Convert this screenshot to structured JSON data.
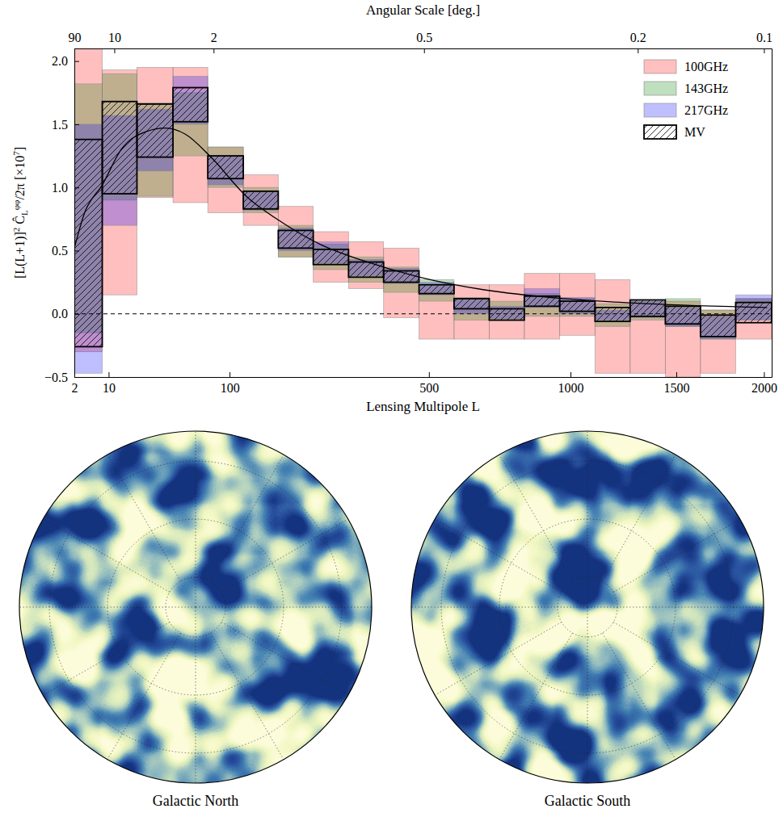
{
  "chart_data": {
    "type": "errorbox",
    "x2label": "Angular Scale [deg.]",
    "xlabel": "Lensing Multipole L",
    "ylabel": [
      "[L(L+1)]",
      "2",
      " Ĉ",
      "L",
      "φφ",
      "/2π [×10",
      "7",
      "]"
    ],
    "xlim": [
      2,
      2048
    ],
    "ylim": [
      -0.5,
      2.1
    ],
    "xticks": [
      2,
      10,
      100,
      500,
      1000,
      1500,
      2000
    ],
    "x2ticks": [
      {
        "value": 2,
        "label": "90"
      },
      {
        "value": 12,
        "label": "10"
      },
      {
        "value": 82,
        "label": "2"
      },
      {
        "value": 486,
        "label": "0.5"
      },
      {
        "value": 1305,
        "label": "0.2"
      },
      {
        "value": 2000,
        "label": "0.1"
      }
    ],
    "yticks": [
      {
        "value": -0.5,
        "label": "−0.5"
      },
      {
        "value": 0,
        "label": "0.0"
      },
      0.5,
      {
        "value": 1,
        "label": "1.0"
      },
      1.5,
      {
        "value": 2,
        "label": "2.0"
      }
    ],
    "bins": [
      2,
      8,
      22,
      45,
      76,
      117,
      167,
      227,
      298,
      379,
      472,
      575,
      690,
      816,
      955,
      1106,
      1268,
      1443,
      1630,
      1830,
      2048
    ],
    "series": [
      {
        "name": "100GHz",
        "color": "#ff0000",
        "values": [
          1.0,
          1.04,
          1.435,
          1.415,
          1.06,
          0.9,
          0.65,
          0.45,
          0.385,
          0.245,
          0.015,
          0.015,
          0.015,
          0.06,
          0.075,
          -0.1,
          -0.185,
          -0.2,
          -0.22,
          -0.04
        ],
        "errors": [
          1.3,
          0.89,
          0.515,
          0.535,
          0.26,
          0.2,
          0.2,
          0.2,
          0.185,
          0.275,
          0.215,
          0.215,
          0.215,
          0.26,
          0.245,
          0.37,
          0.285,
          0.3,
          0.25,
          0.16
        ]
      },
      {
        "name": "143GHz",
        "color": "#008000",
        "values": [
          0.835,
          1.4,
          1.3,
          1.5,
          1.16,
          0.9,
          0.575,
          0.45,
          0.35,
          0.27,
          0.185,
          0.04,
          0.025,
          0.07,
          0.05,
          -0.01,
          0.025,
          0.01,
          -0.085,
          0.035
        ],
        "errors": [
          0.985,
          0.5,
          0.37,
          0.25,
          0.16,
          0.1,
          0.125,
          0.1,
          0.1,
          0.1,
          0.085,
          0.09,
          0.075,
          0.09,
          0.07,
          0.09,
          0.075,
          0.11,
          0.115,
          0.085
        ]
      },
      {
        "name": "217GHz",
        "color": "#0000ff",
        "values": [
          0.515,
          1.135,
          1.375,
          1.69,
          1.135,
          0.895,
          0.59,
          0.485,
          0.365,
          0.3,
          0.2,
          0.06,
          0.01,
          0.125,
          0.065,
          -0.01,
          0.035,
          -0.025,
          -0.11,
          0.05
        ],
        "errors": [
          0.985,
          0.435,
          0.245,
          0.19,
          0.115,
          0.075,
          0.09,
          0.085,
          0.065,
          0.06,
          0.05,
          0.06,
          0.05,
          0.075,
          0.065,
          0.04,
          0.065,
          0.075,
          0.09,
          0.1
        ]
      },
      {
        "name": "MV",
        "color": "#000000",
        "marker": "hatch",
        "values": [
          0.56,
          1.315,
          1.45,
          1.655,
          1.16,
          0.9,
          0.59,
          0.45,
          0.35,
          0.295,
          0.195,
          0.08,
          -0.005,
          0.1,
          0.06,
          -0.005,
          0.045,
          -0.01,
          -0.095,
          0.01
        ],
        "errors": [
          0.82,
          0.365,
          0.21,
          0.135,
          0.09,
          0.07,
          0.07,
          0.06,
          0.06,
          0.045,
          0.035,
          0.04,
          0.045,
          0.04,
          0.04,
          0.055,
          0.065,
          0.07,
          0.085,
          0.08
        ]
      },
      {
        "type": "line",
        "color": "#000000",
        "x": [
          2,
          3.7,
          8,
          14.7,
          26.6,
          39.5,
          55.3,
          78,
          121,
          174,
          245,
          331,
          474,
          673,
          977,
          1345,
          2019
        ],
        "values": [
          0.52,
          0.8,
          1.02,
          1.3,
          1.44,
          1.47,
          1.42,
          1.25,
          0.93,
          0.72,
          0.54,
          0.42,
          0.29,
          0.19,
          0.12,
          0.08,
          0.05
        ]
      }
    ],
    "hlines": [
      0
    ],
    "legend": "upper right"
  },
  "maps": [
    {
      "title": "Galactic North"
    },
    {
      "title": "Galactic South"
    }
  ]
}
